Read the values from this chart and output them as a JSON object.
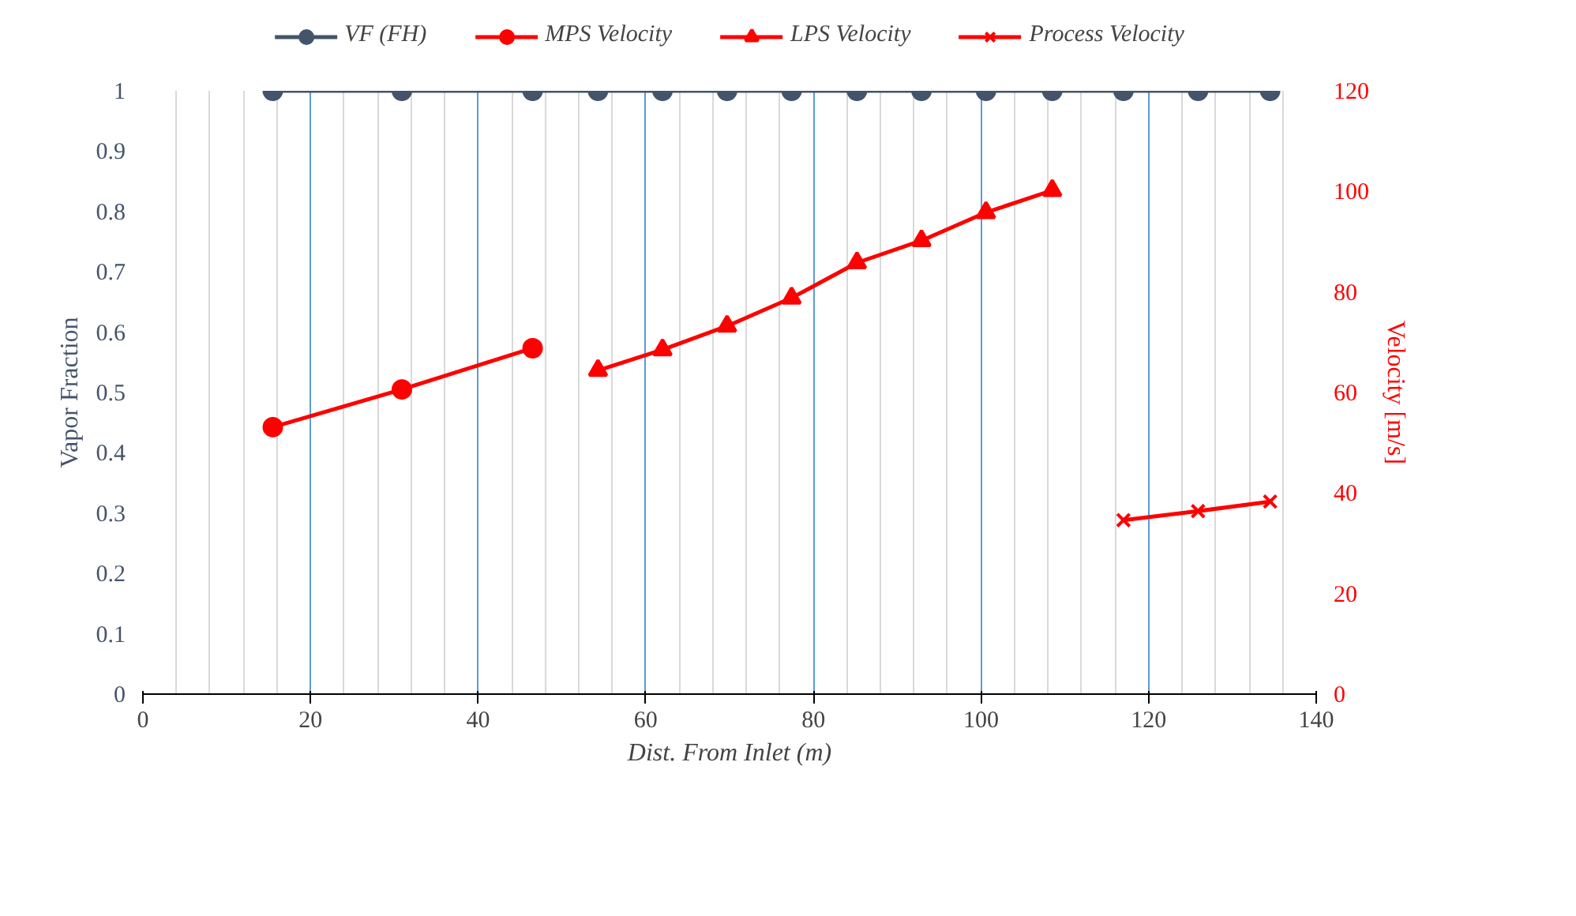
{
  "chart_data": {
    "type": "line",
    "xlabel": "Dist. From Inlet (m)",
    "ylabel": "Vapor Fraction",
    "y2label": "Velocity [m/s]",
    "xlim": [
      0,
      140
    ],
    "xticks": [
      0,
      20,
      40,
      60,
      80,
      100,
      120,
      140
    ],
    "ylim": [
      0,
      1
    ],
    "yticks": [
      0,
      0.1,
      0.2,
      0.3,
      0.4,
      0.5,
      0.6,
      0.7,
      0.8,
      0.9,
      1
    ],
    "y2lim": [
      0,
      120
    ],
    "y2ticks": [
      0,
      20,
      40,
      60,
      80,
      100,
      120
    ],
    "grid": "x",
    "legend": "top",
    "line_style": "solid",
    "series": [
      {
        "name": "VF (FH)",
        "color": "#44546a",
        "marker": "circle",
        "x": [
          15.5,
          30.9,
          46.5,
          54.3,
          62.0,
          69.7,
          77.4,
          85.2,
          92.9,
          100.6,
          108.5,
          117.0,
          125.9,
          134.5
        ],
        "values": [
          1,
          1,
          1,
          1,
          1,
          1,
          1,
          1,
          1,
          1,
          1,
          1,
          1,
          1
        ]
      },
      {
        "name": "MPS Velocity",
        "color": "#ff0000",
        "marker": "circle",
        "axis": "y2",
        "x": [
          15.5,
          30.9,
          46.5
        ],
        "values": [
          53.1,
          60.6,
          68.8
        ]
      },
      {
        "name": "LPS Velocity",
        "color": "#ff0000",
        "marker": "triangle",
        "axis": "y2",
        "x": [
          54.3,
          62.0,
          69.7,
          77.4,
          85.2,
          92.9,
          100.6,
          108.5
        ],
        "values": [
          64.4,
          68.5,
          73.2,
          78.8,
          85.8,
          90.2,
          95.8,
          100.2
        ]
      },
      {
        "name": "Process Velocity",
        "color": "#ff0000",
        "marker": "cross",
        "axis": "y2",
        "x": [
          117.0,
          125.9,
          134.5
        ],
        "values": [
          34.6,
          36.4,
          38.3
        ]
      }
    ]
  }
}
